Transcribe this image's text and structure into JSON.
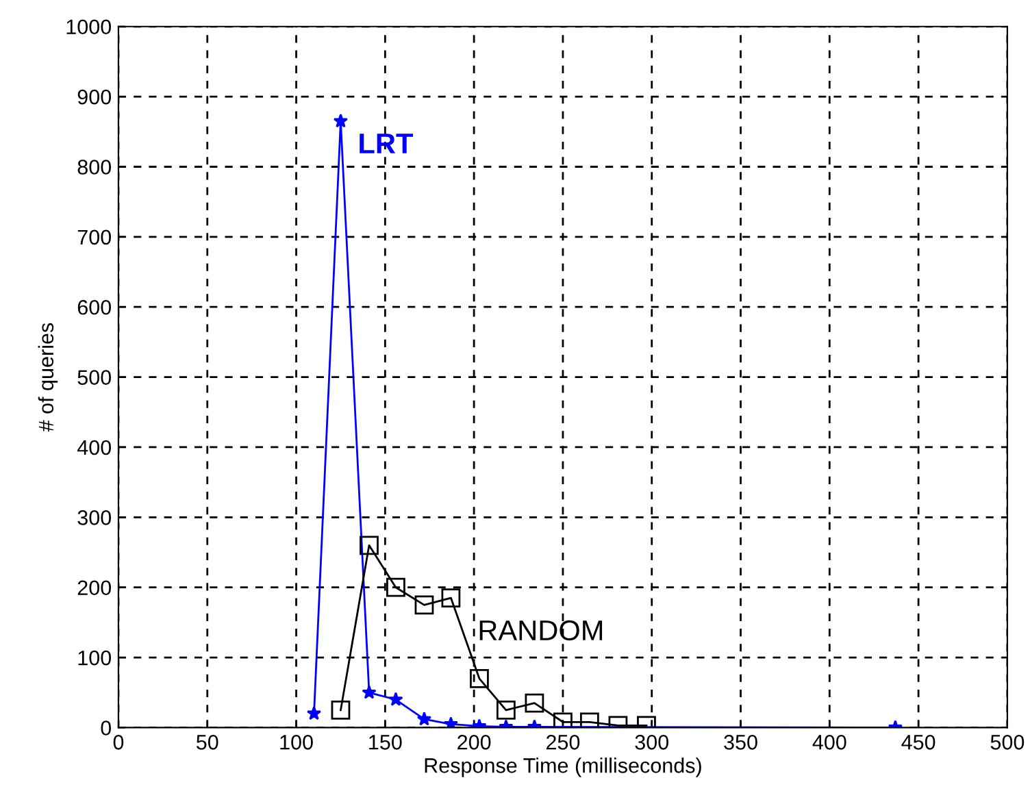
{
  "chart_data": {
    "type": "line",
    "xlabel": "Response Time (milliseconds)",
    "ylabel": "# of queries",
    "series": [
      {
        "name": "LRT",
        "color": "#0000ff",
        "marker": "star",
        "x": [
          110,
          125,
          141,
          156,
          172,
          187,
          203,
          218,
          234,
          437
        ],
        "values": [
          20,
          865,
          50,
          40,
          12,
          5,
          2,
          1,
          1,
          0
        ]
      },
      {
        "name": "RANDOM",
        "color": "#000000",
        "marker": "square",
        "x": [
          125,
          141,
          156,
          172,
          187,
          203,
          218,
          234,
          250,
          265,
          281,
          297
        ],
        "values": [
          25,
          260,
          200,
          175,
          185,
          70,
          25,
          35,
          8,
          8,
          3,
          3
        ]
      }
    ],
    "xlim": [
      0,
      500
    ],
    "xticks": [
      0,
      50,
      100,
      150,
      200,
      250,
      300,
      350,
      400,
      450,
      500
    ],
    "ylim": [
      0,
      1000
    ],
    "yticks": [
      0,
      100,
      200,
      300,
      400,
      500,
      600,
      700,
      800,
      900,
      1000
    ],
    "grid": true,
    "line_style": "solid"
  }
}
